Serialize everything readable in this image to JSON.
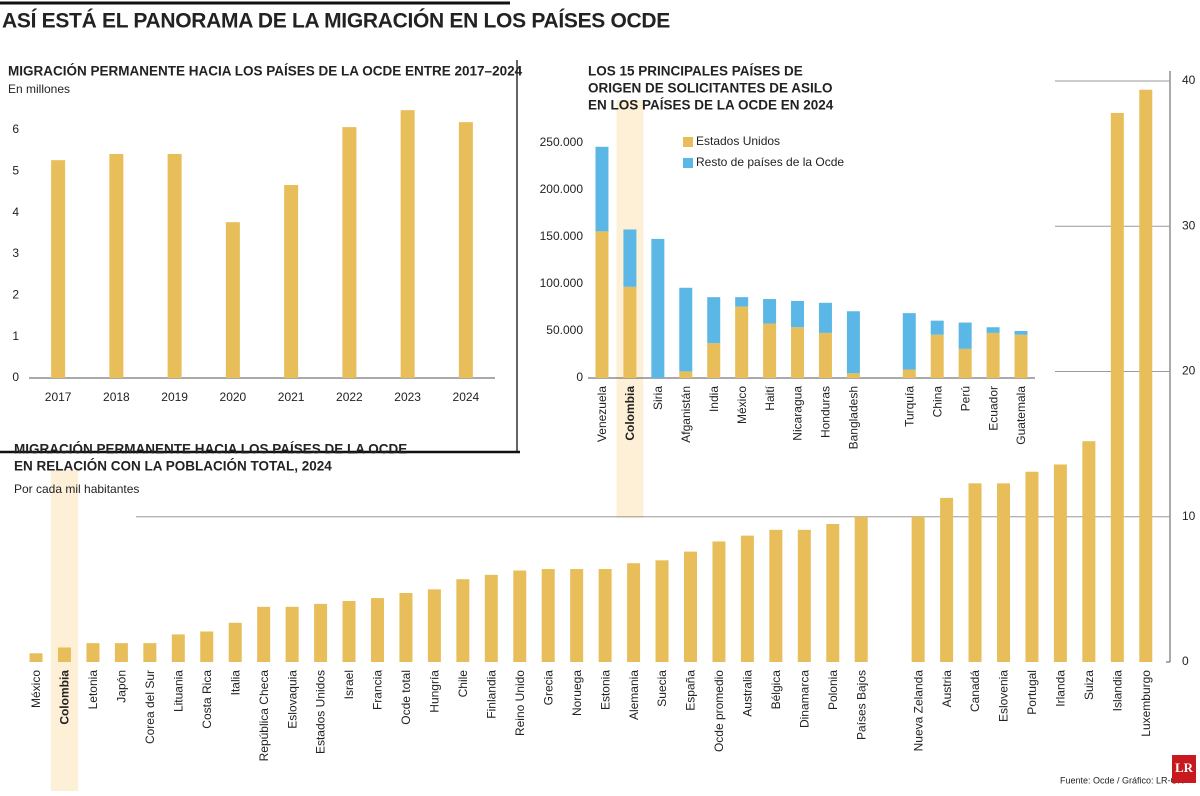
{
  "title": "ASÍ ESTÁ EL PANORAMA DE LA MIGRACIÓN EN LOS PAÍSES OCDE",
  "source": "Fuente: Ocde / Gráfico: LR-GR",
  "logo": "LR",
  "chart_data": [
    {
      "type": "bar",
      "title": [
        "MIGRACIÓN PERMANENTE HACIA LOS PAÍSES DE LA OCDE ENTRE 2017–2024"
      ],
      "subtitle": "En millones",
      "categories": [
        "2017",
        "2018",
        "2019",
        "2020",
        "2021",
        "2022",
        "2023",
        "2024"
      ],
      "values": [
        5.27,
        5.42,
        5.42,
        3.77,
        4.67,
        6.07,
        6.48,
        6.19
      ],
      "color": "#e8be5a",
      "ylim": [
        0,
        6.6
      ],
      "yticks": [
        0,
        1,
        2,
        3,
        4,
        5,
        6
      ],
      "grid": false
    },
    {
      "type": "stacked_bar",
      "title": [
        "LOS 15 PRINCIPALES PAÍSES DE",
        "ORIGEN DE SOLICITANTES DE ASILO",
        "EN LOS PAÍSES DE LA OCDE EN 2024"
      ],
      "categories": [
        "Venezuela",
        "Colombia",
        "Siria",
        "Afganistán",
        "India",
        "México",
        "Haití",
        "Nicaragua",
        "Honduras",
        "Bangladesh",
        null,
        "Turquía",
        "China",
        "Perú",
        "Ecuador",
        "Guatemala"
      ],
      "series": [
        {
          "name": "Estados Unidos",
          "color": "#e8be5a",
          "values": [
            156000,
            97000,
            0,
            7000,
            37000,
            76000,
            58000,
            54000,
            48000,
            5000,
            null,
            9000,
            46000,
            31000,
            48000,
            46000
          ]
        },
        {
          "name": "Resto de países de la Ocde",
          "color": "#5bb8e6",
          "values": [
            90000,
            61000,
            148000,
            89000,
            49000,
            10000,
            26000,
            28000,
            32000,
            66000,
            null,
            60000,
            15000,
            28000,
            6000,
            4000
          ]
        }
      ],
      "highlight": "Colombia",
      "ylim": [
        0,
        250000
      ],
      "yticks": [
        0,
        {
          "value": 50000,
          "label": "50.000"
        },
        {
          "value": 100000,
          "label": "100.000"
        },
        {
          "value": 150000,
          "label": "150.000"
        },
        {
          "value": 200000,
          "label": "200.000"
        },
        {
          "value": 250000,
          "label": "250.000"
        }
      ],
      "grid": false,
      "legend": "top-left"
    },
    {
      "type": "bar",
      "title": [
        "MIGRACIÓN PERMANENTE HACIA LOS PAÍSES DE LA OCDE",
        "EN RELACIÓN CON LA POBLACIÓN TOTAL, 2024"
      ],
      "subtitle": "Por cada mil habitantes",
      "categories": [
        "México",
        "Colombia",
        "Letonia",
        "Japón",
        "Corea del Sur",
        "Lituania",
        "Costa Rica",
        "Italia",
        "República Checa",
        "Eslovaquia",
        "Estados Unidos",
        "Israel",
        "Francia",
        "Ocde total",
        "Hungría",
        "Chile",
        "Finlandia",
        "Reino Unido",
        "Grecia",
        "Noruega",
        "Estonia",
        "Alemania",
        "Suecia",
        "España",
        "Ocde promedio",
        "Australia",
        "Bélgica",
        "Dinamarca",
        "Polonia",
        "Países Bajos",
        null,
        "Nueva Zelanda",
        "Austria",
        "Canadá",
        "Eslovenia",
        "Portugal",
        "Irlanda",
        "Suiza",
        "Islandia",
        "Luxemburgo"
      ],
      "values": [
        0.6,
        1.0,
        1.3,
        1.3,
        1.3,
        1.9,
        2.1,
        2.7,
        3.8,
        3.8,
        4.0,
        4.2,
        4.4,
        4.75,
        5.0,
        5.7,
        6.0,
        6.3,
        6.4,
        6.4,
        6.4,
        6.8,
        7.0,
        7.6,
        8.3,
        8.7,
        9.1,
        9.1,
        9.5,
        10.0,
        null,
        10.0,
        11.3,
        12.3,
        12.3,
        13.1,
        13.6,
        15.2,
        37.8,
        39.4
      ],
      "color": "#e8be5a",
      "highlight": "Colombia",
      "ylim": [
        0,
        40
      ],
      "yticks": [
        0,
        10,
        20,
        30,
        40
      ],
      "y_axis_side": "right",
      "grid": true
    }
  ]
}
